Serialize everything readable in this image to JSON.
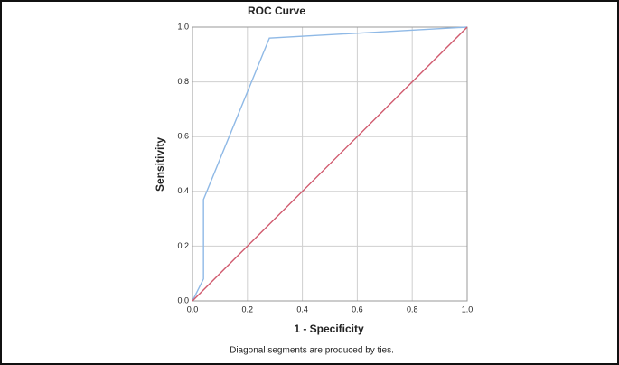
{
  "chart_data": {
    "type": "line",
    "title": "ROC Curve",
    "x_label": "1 - Specificity",
    "y_label": "Sensitivity",
    "footnote": "Diagonal segments are produced by ties.",
    "series": [
      {
        "color": "#8fb9e6",
        "x": [
          0,
          0.04,
          0.04,
          0.28,
          1
        ],
        "values": [
          0,
          0.08,
          0.37,
          0.96,
          1
        ]
      },
      {
        "color": "#d05a6e",
        "x": [
          0,
          1
        ],
        "values": [
          0,
          1
        ]
      }
    ],
    "xlim": [
      0,
      1
    ],
    "ylim": [
      0,
      1
    ],
    "xticks": [
      {
        "value": 0,
        "label": "0.0"
      },
      0.2,
      0.4,
      0.6,
      0.8,
      {
        "value": 1,
        "label": "1.0"
      }
    ],
    "yticks": [
      {
        "value": 0,
        "label": "0.0"
      },
      0.2,
      0.4,
      0.6,
      0.8,
      {
        "value": 1,
        "label": "1.0"
      }
    ],
    "grid": true
  }
}
